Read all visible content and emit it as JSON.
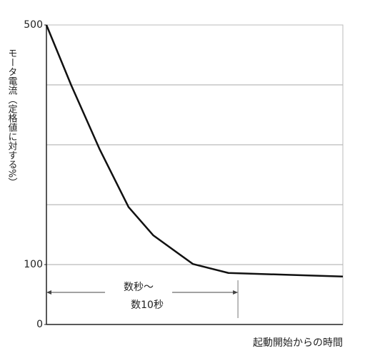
{
  "chart_data": {
    "type": "line",
    "y_label": "モータ電流（定格値に対する%）",
    "x_label": "起動開始からの時間",
    "x": [
      0,
      8.4,
      18,
      27.7,
      36,
      49.4,
      61.4,
      80.7,
      100
    ],
    "series": [
      {
        "color": "#111111",
        "values": [
          500,
          399,
          292,
          196,
          149,
          101,
          86,
          83,
          80
        ]
      }
    ],
    "xlim": [
      0,
      100
    ],
    "ylim": [
      0,
      500
    ],
    "yticks": [
      0,
      100,
      500
    ],
    "grid_lines": [
      100,
      200,
      300,
      400
    ],
    "annotation": {
      "lines": [
        "数秒～",
        "数10秒"
      ],
      "span": [
        0,
        64.6
      ]
    }
  }
}
